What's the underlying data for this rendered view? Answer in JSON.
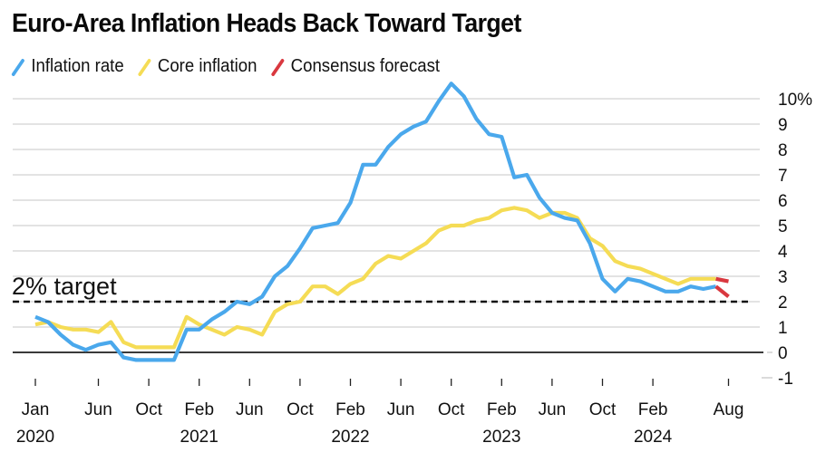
{
  "title": "Euro-Area Inflation Heads Back Toward Target",
  "legend": [
    {
      "label": "Inflation rate",
      "color": "#4aa8ec"
    },
    {
      "label": "Core inflation",
      "color": "#f5dc55"
    },
    {
      "label": "Consensus forecast",
      "color": "#d9383f"
    }
  ],
  "chart_data": {
    "type": "line",
    "title": "Euro-Area Inflation Heads Back Toward Target",
    "xlabel": "",
    "ylabel": "",
    "y_unit": "%",
    "ylim": [
      -1,
      10
    ],
    "yticks": [
      -1,
      0,
      1,
      2,
      3,
      4,
      5,
      6,
      7,
      8,
      9,
      10
    ],
    "ytick_labels": [
      "-1",
      "0",
      "1",
      "2",
      "3",
      "4",
      "5",
      "6",
      "7",
      "8",
      "9",
      "10%"
    ],
    "y_axis_position": "right",
    "grid": true,
    "legend_position": "top-left",
    "x_start": "2020-01",
    "x_end": "2024-08",
    "xticks": [
      {
        "month_index": 0,
        "label": "Jan",
        "year": "2020"
      },
      {
        "month_index": 5,
        "label": "Jun",
        "year": ""
      },
      {
        "month_index": 9,
        "label": "Oct",
        "year": ""
      },
      {
        "month_index": 13,
        "label": "Feb",
        "year": "2021"
      },
      {
        "month_index": 17,
        "label": "Jun",
        "year": ""
      },
      {
        "month_index": 21,
        "label": "Oct",
        "year": ""
      },
      {
        "month_index": 25,
        "label": "Feb",
        "year": "2022"
      },
      {
        "month_index": 29,
        "label": "Jun",
        "year": ""
      },
      {
        "month_index": 33,
        "label": "Oct",
        "year": ""
      },
      {
        "month_index": 37,
        "label": "Feb",
        "year": "2023"
      },
      {
        "month_index": 41,
        "label": "Jun",
        "year": ""
      },
      {
        "month_index": 45,
        "label": "Oct",
        "year": ""
      },
      {
        "month_index": 49,
        "label": "Feb",
        "year": "2024"
      },
      {
        "month_index": 55,
        "label": "Aug",
        "year": ""
      }
    ],
    "target": {
      "value": 2,
      "label": "2% target"
    },
    "series": [
      {
        "name": "Inflation rate",
        "color": "#4aa8ec",
        "start_month_index": 0,
        "values": [
          1.4,
          1.2,
          0.7,
          0.3,
          0.1,
          0.3,
          0.4,
          -0.2,
          -0.3,
          -0.3,
          -0.3,
          -0.3,
          0.9,
          0.9,
          1.3,
          1.6,
          2.0,
          1.9,
          2.2,
          3.0,
          3.4,
          4.1,
          4.9,
          5.0,
          5.1,
          5.9,
          7.4,
          7.4,
          8.1,
          8.6,
          8.9,
          9.1,
          9.9,
          10.6,
          10.1,
          9.2,
          8.6,
          8.5,
          6.9,
          7.0,
          6.1,
          5.5,
          5.3,
          5.2,
          4.3,
          2.9,
          2.4,
          2.9,
          2.8,
          2.6,
          2.4,
          2.4,
          2.6,
          2.5,
          2.6
        ]
      },
      {
        "name": "Core inflation",
        "color": "#f5dc55",
        "start_month_index": 0,
        "values": [
          1.1,
          1.2,
          1.0,
          0.9,
          0.9,
          0.8,
          1.2,
          0.4,
          0.2,
          0.2,
          0.2,
          0.2,
          1.4,
          1.1,
          0.9,
          0.7,
          1.0,
          0.9,
          0.7,
          1.6,
          1.9,
          2.0,
          2.6,
          2.6,
          2.3,
          2.7,
          2.9,
          3.5,
          3.8,
          3.7,
          4.0,
          4.3,
          4.8,
          5.0,
          5.0,
          5.2,
          5.3,
          5.6,
          5.7,
          5.6,
          5.3,
          5.5,
          5.5,
          5.3,
          4.5,
          4.2,
          3.6,
          3.4,
          3.3,
          3.1,
          2.9,
          2.7,
          2.9,
          2.9,
          2.9
        ]
      },
      {
        "name": "Consensus forecast (headline)",
        "color": "#d9383f",
        "start_month_index": 54,
        "values": [
          2.6,
          2.2
        ]
      },
      {
        "name": "Consensus forecast (core)",
        "color": "#d9383f",
        "start_month_index": 54,
        "values": [
          2.9,
          2.8
        ]
      }
    ]
  }
}
